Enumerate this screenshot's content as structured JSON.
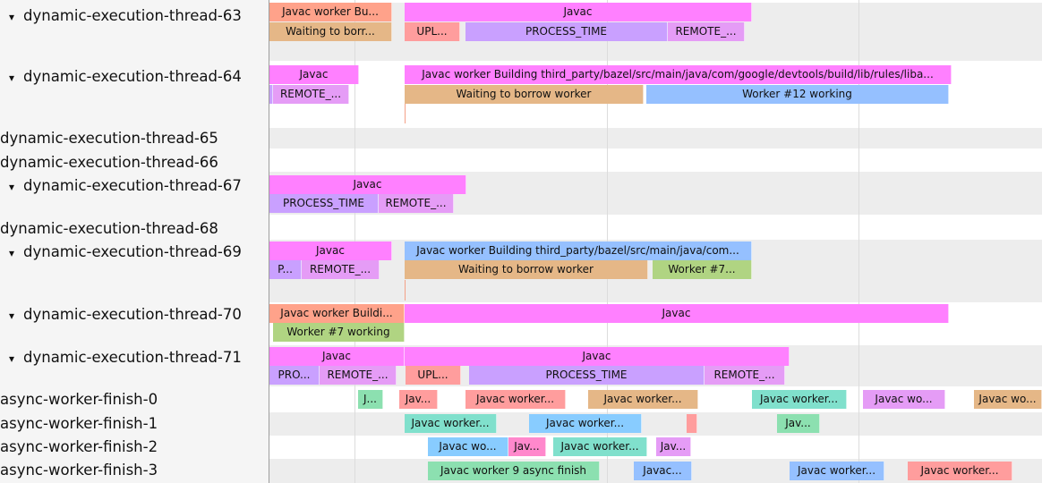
{
  "tracks": [
    {
      "label": "dynamic-execution-thread-63",
      "expandable": true
    },
    {
      "label": "dynamic-execution-thread-64",
      "expandable": true
    },
    {
      "label": "dynamic-execution-thread-65",
      "expandable": false
    },
    {
      "label": "dynamic-execution-thread-66",
      "expandable": false
    },
    {
      "label": "dynamic-execution-thread-67",
      "expandable": true
    },
    {
      "label": "dynamic-execution-thread-68",
      "expandable": false
    },
    {
      "label": "dynamic-execution-thread-69",
      "expandable": true
    },
    {
      "label": "dynamic-execution-thread-70",
      "expandable": true
    },
    {
      "label": "dynamic-execution-thread-71",
      "expandable": true
    },
    {
      "label": "async-worker-finish-0",
      "expandable": false
    },
    {
      "label": "async-worker-finish-1",
      "expandable": false
    },
    {
      "label": "async-worker-finish-2",
      "expandable": false
    },
    {
      "label": "async-worker-finish-3",
      "expandable": false
    }
  ],
  "expand_icon": "▾",
  "colors": {
    "javac": "#ff80ff",
    "salmon": "#ffa28a",
    "tan": "#e5b787",
    "upl": "#ff9d9d",
    "process": "#c9a0ff",
    "remote": "#e59cf6",
    "blue": "#95c0ff",
    "lightblue": "#88ccff",
    "green": "#b0d482",
    "mint": "#8ce0b0",
    "teal": "#80e0cc",
    "pink": "#ff88cc"
  },
  "slices": [
    {
      "text": "Javac worker Bu...",
      "color": "salmon"
    },
    {
      "text": "Javac",
      "color": "javac"
    },
    {
      "text": "Waiting to borr...",
      "color": "tan"
    },
    {
      "text": "UPL...",
      "color": "upl"
    },
    {
      "text": "PROCESS_TIME",
      "color": "process"
    },
    {
      "text": "REMOTE_...",
      "color": "remote"
    },
    {
      "text": "Javac",
      "color": "javac"
    },
    {
      "text": "Javac worker Building third_party/bazel/src/main/java/com/google/devtools/build/lib/rules/liba...",
      "color": "javac"
    },
    {
      "text": "",
      "color": "process"
    },
    {
      "text": "REMOTE_...",
      "color": "remote"
    },
    {
      "text": "Waiting to borrow worker",
      "color": "tan"
    },
    {
      "text": "Worker #12 working",
      "color": "blue"
    },
    {
      "text": "Javac",
      "color": "javac"
    },
    {
      "text": "PROCESS_TIME",
      "color": "process"
    },
    {
      "text": "REMOTE_...",
      "color": "remote"
    },
    {
      "text": "Javac",
      "color": "javac"
    },
    {
      "text": "Javac worker Building third_party/bazel/src/main/java/com...",
      "color": "blue"
    },
    {
      "text": "P...",
      "color": "process"
    },
    {
      "text": "REMOTE_...",
      "color": "remote"
    },
    {
      "text": "Waiting to borrow worker",
      "color": "tan"
    },
    {
      "text": "Worker #7...",
      "color": "green"
    },
    {
      "text": "Javac worker Buildi...",
      "color": "salmon"
    },
    {
      "text": "Javac",
      "color": "javac"
    },
    {
      "text": "Worker #7 working",
      "color": "green"
    },
    {
      "text": "Javac",
      "color": "javac"
    },
    {
      "text": "Javac",
      "color": "javac"
    },
    {
      "text": "PRO...",
      "color": "process"
    },
    {
      "text": "REMOTE_...",
      "color": "remote"
    },
    {
      "text": "UPL...",
      "color": "upl"
    },
    {
      "text": "PROCESS_TIME",
      "color": "process"
    },
    {
      "text": "REMOTE_...",
      "color": "remote"
    },
    {
      "text": "J...",
      "color": "mint"
    },
    {
      "text": "Jav...",
      "color": "upl"
    },
    {
      "text": "Javac worker...",
      "color": "upl"
    },
    {
      "text": "Javac worker...",
      "color": "tan"
    },
    {
      "text": "Javac worker...",
      "color": "teal"
    },
    {
      "text": "Javac wo...",
      "color": "remote"
    },
    {
      "text": "Javac wo...",
      "color": "tan"
    },
    {
      "text": "Javac worker...",
      "color": "teal"
    },
    {
      "text": "Javac worker...",
      "color": "lightblue"
    },
    {
      "text": "",
      "color": "upl"
    },
    {
      "text": "Jav...",
      "color": "mint"
    },
    {
      "text": "Javac wo...",
      "color": "lightblue"
    },
    {
      "text": "Jav...",
      "color": "pink"
    },
    {
      "text": "Javac worker...",
      "color": "teal"
    },
    {
      "text": "Jav...",
      "color": "remote"
    },
    {
      "text": "Javac worker 9 async finish",
      "color": "mint"
    },
    {
      "text": "Javac...",
      "color": "blue"
    },
    {
      "text": "Javac worker...",
      "color": "blue"
    },
    {
      "text": "Javac worker...",
      "color": "upl"
    }
  ]
}
